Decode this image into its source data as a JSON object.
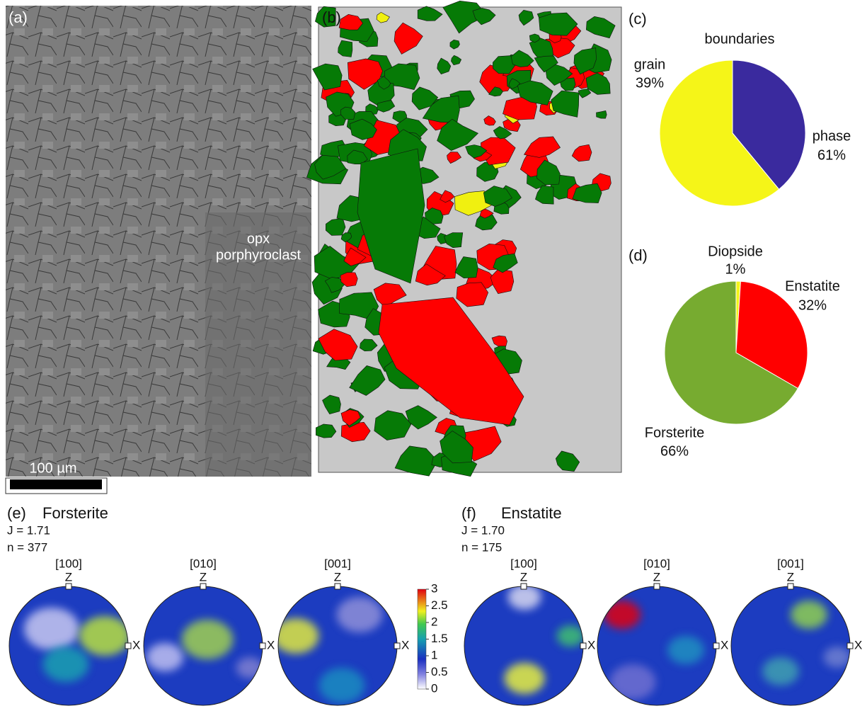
{
  "panels": {
    "a": {
      "letter": "(a)",
      "note_1": "opx",
      "note_2": "porphyroclast",
      "scale": "100 µm"
    },
    "b": {
      "letter": "(b)"
    },
    "c": {
      "letter": "(c)"
    },
    "d": {
      "letter": "(d)"
    },
    "e": {
      "letter": "(e)",
      "name": "Forsterite",
      "j": "J = 1.71",
      "n": "n = 377"
    },
    "f": {
      "letter": "(f)",
      "name": "Enstatite",
      "j": "J = 1.70",
      "n": "n = 175"
    }
  },
  "pole_figures": {
    "axes": [
      "[100]",
      "[010]",
      "[001]"
    ],
    "z": "Z",
    "x": "X"
  },
  "colorbar": {
    "lim": [
      0,
      3
    ],
    "ticks": [
      0,
      0.5,
      1,
      1.5,
      2,
      2.5,
      3
    ]
  },
  "chart_data": [
    {
      "type": "pie",
      "title": "boundaries",
      "categories": [
        "grain",
        "phase"
      ],
      "values": [
        39,
        61
      ],
      "value_labels": [
        "39%",
        "61%"
      ],
      "colors": [
        "#3a2a9e",
        "#f5f518"
      ]
    },
    {
      "type": "pie",
      "categories": [
        "Diopside",
        "Enstatite",
        "Forsterite"
      ],
      "values": [
        1,
        32,
        66
      ],
      "value_labels": [
        "1%",
        "32%",
        "66%"
      ],
      "colors": [
        "#f5f518",
        "#ff0000",
        "#77ab30"
      ]
    }
  ]
}
